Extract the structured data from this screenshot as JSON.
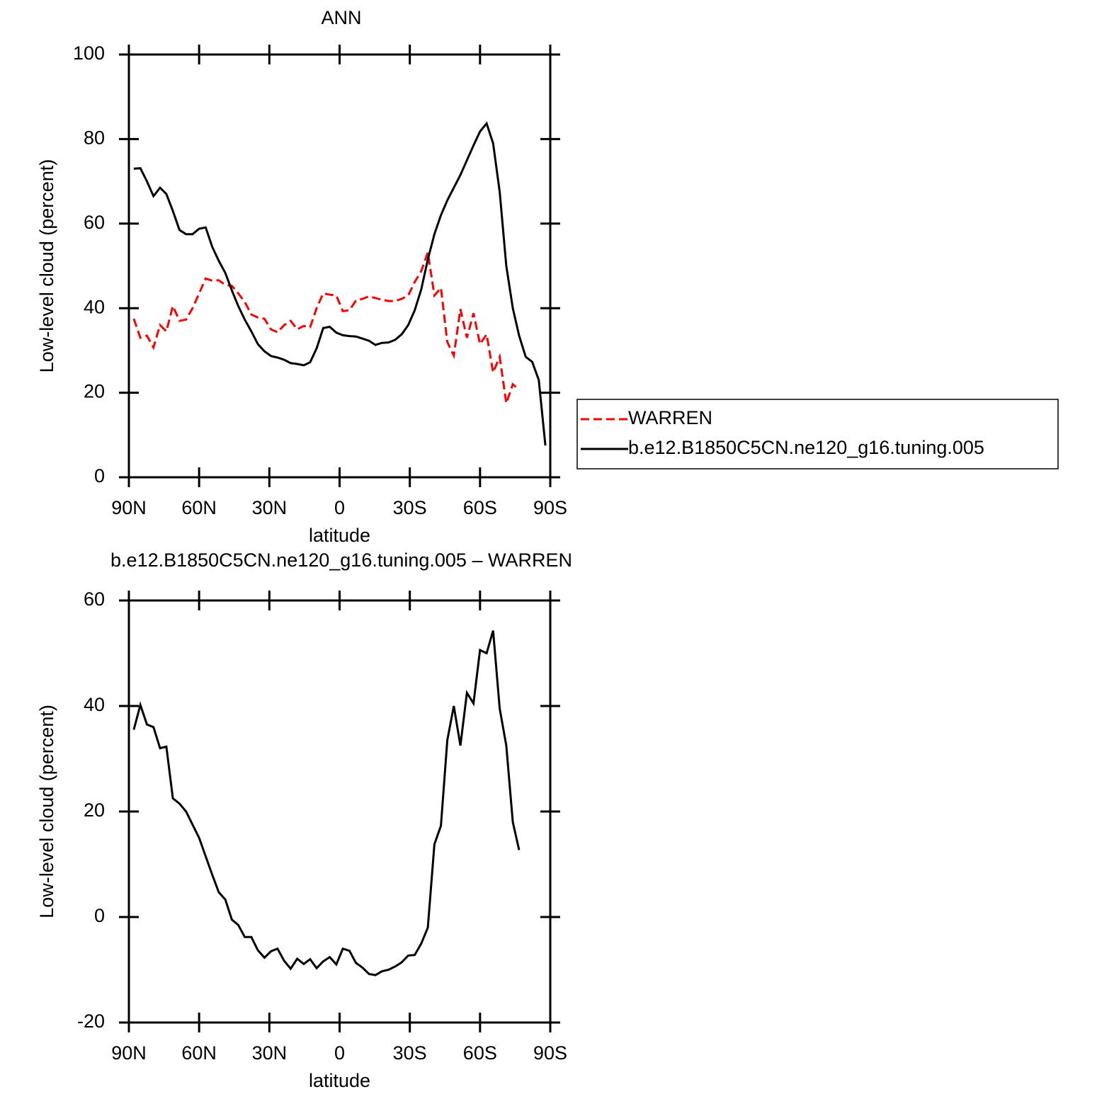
{
  "chart_data": [
    {
      "type": "line",
      "title": "ANN",
      "xlabel": "latitude",
      "ylabel": "Low-level cloud (percent)",
      "x": [
        87.9,
        85.1,
        82.3,
        79.5,
        76.7,
        74.0,
        71.2,
        68.4,
        65.6,
        62.8,
        60.0,
        57.2,
        54.4,
        51.6,
        48.8,
        46.0,
        43.3,
        40.5,
        37.7,
        34.9,
        32.1,
        29.3,
        26.5,
        23.7,
        20.9,
        18.1,
        15.3,
        12.6,
        9.8,
        7.0,
        4.2,
        1.4,
        -1.4,
        -4.2,
        -7.0,
        -9.8,
        -12.6,
        -15.3,
        -18.1,
        -20.9,
        -23.7,
        -26.5,
        -29.3,
        -32.1,
        -34.9,
        -37.7,
        -40.5,
        -43.3,
        -46.0,
        -48.8,
        -51.6,
        -54.4,
        -57.2,
        -60.0,
        -62.8,
        -65.6,
        -68.4,
        -71.2,
        -74.0,
        -76.7,
        -79.5,
        -82.3,
        -85.1,
        -87.9
      ],
      "series": [
        {
          "name": "WARREN",
          "color": "#ff0000",
          "linestyle": "dashed",
          "values": [
            37.5,
            33,
            33.5,
            30.7,
            36,
            34.5,
            40.5,
            37,
            37.3,
            40,
            43.5,
            47,
            46.5,
            46.6,
            45.5,
            45.3,
            43.5,
            41.5,
            38.5,
            37.8,
            37.5,
            35,
            34.3,
            36,
            37,
            35,
            35.8,
            35.5,
            40,
            43.5,
            43.2,
            43,
            39.3,
            39.5,
            41.8,
            42.2,
            42.8,
            42.4,
            42,
            41.7,
            41.7,
            42.2,
            43,
            46.2,
            48.8,
            53.2,
            43,
            44.8,
            32,
            28.8,
            39.8,
            33,
            38.8,
            31.5,
            33.8,
            24.8,
            28.5,
            17.5,
            22,
            20.7,
            null,
            null,
            null,
            null
          ]
        },
        {
          "name": "b.e12.B1850C5CN.ne120_g16.tuning.005",
          "color": "#000000",
          "linestyle": "solid",
          "values": [
            73,
            73.1,
            70,
            66.5,
            68.5,
            67,
            63,
            58.5,
            57.5,
            57.5,
            58.8,
            59.1,
            54.5,
            51.2,
            48.3,
            44.2,
            40.5,
            37.3,
            34.5,
            31.5,
            29.8,
            28.7,
            28.3,
            27.8,
            27,
            26.8,
            26.5,
            27.2,
            30.5,
            35.3,
            35.6,
            34.2,
            33.6,
            33.4,
            33.3,
            32.8,
            32.3,
            31.3,
            31.8,
            31.9,
            32.5,
            33.8,
            36,
            39.5,
            44.5,
            51.5,
            57.5,
            62,
            65.5,
            68.5,
            71.5,
            75,
            78.5,
            81.8,
            83.7,
            79,
            67.5,
            50,
            40,
            33.5,
            28.5,
            27.3,
            23,
            7.5
          ]
        }
      ],
      "xlim": [
        90,
        -90
      ],
      "ylim": [
        0,
        100
      ],
      "xticks": [
        {
          "value": 90,
          "label": "90N"
        },
        {
          "value": 60,
          "label": "60N"
        },
        {
          "value": 30,
          "label": "30N"
        },
        0,
        {
          "value": -30,
          "label": "30S"
        },
        {
          "value": -60,
          "label": "60S"
        },
        {
          "value": -90,
          "label": "90S"
        }
      ],
      "yticks": [
        0,
        20,
        40,
        60,
        80,
        100
      ],
      "legend": "right"
    },
    {
      "type": "line",
      "title": "b.e12.B1850C5CN.ne120_g16.tuning.005 – WARREN",
      "xlabel": "latitude",
      "ylabel": "Low-level cloud (percent)",
      "x": [
        87.9,
        85.1,
        82.3,
        79.5,
        76.7,
        74.0,
        71.2,
        68.4,
        65.6,
        62.8,
        60.0,
        57.2,
        54.4,
        51.6,
        48.8,
        46.0,
        43.3,
        40.5,
        37.7,
        34.9,
        32.1,
        29.3,
        26.5,
        23.7,
        20.9,
        18.1,
        15.3,
        12.6,
        9.8,
        7.0,
        4.2,
        1.4,
        -1.4,
        -4.2,
        -7.0,
        -9.8,
        -12.6,
        -15.3,
        -18.1,
        -20.9,
        -23.7,
        -26.5,
        -29.3,
        -32.1,
        -34.9,
        -37.7,
        -40.5,
        -43.3,
        -46.0,
        -48.8,
        -51.6,
        -54.4,
        -57.2,
        -60.0,
        -62.8,
        -65.6,
        -68.4,
        -71.2,
        -74.0,
        -76.7,
        -79.5,
        -82.3,
        -85.1,
        -87.9
      ],
      "series": [
        {
          "color": "#000000",
          "linestyle": "solid",
          "values": [
            35.5,
            40.2,
            36.5,
            36,
            32,
            32.3,
            22.5,
            21.5,
            20,
            17.5,
            15,
            11.5,
            8,
            4.7,
            3.3,
            -0.5,
            -1.5,
            -3.8,
            -3.8,
            -6.3,
            -7.7,
            -6.5,
            -6,
            -8.3,
            -9.8,
            -7.9,
            -8.9,
            -8,
            -9.7,
            -8.4,
            -7.6,
            -9,
            -6,
            -6.4,
            -8.7,
            -9.6,
            -10.8,
            -11,
            -10.3,
            -10,
            -9.4,
            -8.6,
            -7.3,
            -7.2,
            -5,
            -2,
            13.8,
            17.3,
            33.5,
            40,
            32.5,
            42.5,
            40.5,
            50.6,
            50,
            54.3,
            39.5,
            32.5,
            18,
            12.7,
            null,
            null,
            null,
            null
          ]
        }
      ],
      "xlim": [
        90,
        -90
      ],
      "ylim": [
        -20,
        60
      ],
      "xticks": [
        {
          "value": 90,
          "label": "90N"
        },
        {
          "value": 60,
          "label": "60N"
        },
        {
          "value": 30,
          "label": "30N"
        },
        0,
        {
          "value": -30,
          "label": "30S"
        },
        {
          "value": -60,
          "label": "60S"
        },
        {
          "value": -90,
          "label": "90S"
        }
      ],
      "yticks": [
        -20,
        0,
        20,
        40,
        60
      ]
    }
  ]
}
